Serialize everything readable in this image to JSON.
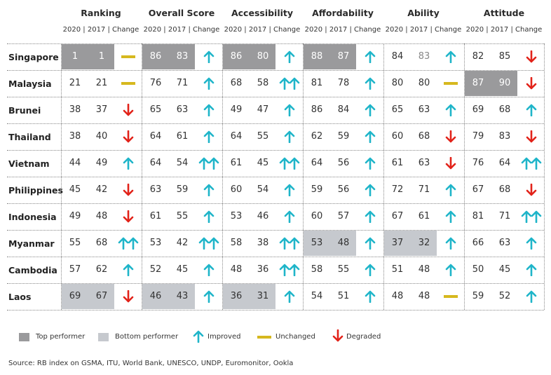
{
  "chart_data": {
    "type": "table",
    "categories": [
      "Ranking",
      "Overall Score",
      "Accessibility",
      "Affordability",
      "Ability",
      "Attitude"
    ],
    "subheader": "2020 | 2017 | Change",
    "countries": [
      "Singapore",
      "Malaysia",
      "Brunei",
      "Thailand",
      "Vietnam",
      "Philippines",
      "Indonesia",
      "Myanmar",
      "Cambodia",
      "Laos"
    ],
    "rows": [
      [
        [
          1,
          1,
          "unchanged"
        ],
        [
          86,
          83,
          "up"
        ],
        [
          86,
          80,
          "up"
        ],
        [
          88,
          87,
          "up"
        ],
        [
          84,
          83,
          "up"
        ],
        [
          82,
          85,
          "down"
        ]
      ],
      [
        [
          21,
          21,
          "unchanged"
        ],
        [
          76,
          71,
          "up"
        ],
        [
          68,
          58,
          "up2"
        ],
        [
          81,
          78,
          "up"
        ],
        [
          80,
          80,
          "unchanged"
        ],
        [
          87,
          90,
          "down"
        ]
      ],
      [
        [
          38,
          37,
          "down"
        ],
        [
          65,
          63,
          "up"
        ],
        [
          49,
          47,
          "up"
        ],
        [
          86,
          84,
          "up"
        ],
        [
          65,
          63,
          "up"
        ],
        [
          69,
          68,
          "up"
        ]
      ],
      [
        [
          38,
          40,
          "down"
        ],
        [
          64,
          61,
          "up"
        ],
        [
          64,
          55,
          "up"
        ],
        [
          62,
          59,
          "up"
        ],
        [
          60,
          68,
          "down"
        ],
        [
          79,
          83,
          "down"
        ]
      ],
      [
        [
          44,
          49,
          "up"
        ],
        [
          64,
          54,
          "up2"
        ],
        [
          61,
          45,
          "up2"
        ],
        [
          64,
          56,
          "up"
        ],
        [
          61,
          63,
          "down"
        ],
        [
          76,
          64,
          "up2"
        ]
      ],
      [
        [
          45,
          42,
          "down"
        ],
        [
          63,
          59,
          "up"
        ],
        [
          60,
          54,
          "up"
        ],
        [
          59,
          56,
          "up"
        ],
        [
          72,
          71,
          "up"
        ],
        [
          67,
          68,
          "down"
        ]
      ],
      [
        [
          49,
          48,
          "down"
        ],
        [
          61,
          55,
          "up"
        ],
        [
          53,
          46,
          "up"
        ],
        [
          60,
          57,
          "up"
        ],
        [
          67,
          61,
          "up"
        ],
        [
          81,
          71,
          "up2"
        ]
      ],
      [
        [
          55,
          68,
          "up2"
        ],
        [
          53,
          42,
          "up2"
        ],
        [
          58,
          38,
          "up2"
        ],
        [
          53,
          48,
          "up"
        ],
        [
          37,
          32,
          "up"
        ],
        [
          66,
          63,
          "up"
        ]
      ],
      [
        [
          57,
          62,
          "up"
        ],
        [
          52,
          45,
          "up"
        ],
        [
          48,
          36,
          "up2"
        ],
        [
          58,
          55,
          "up"
        ],
        [
          51,
          48,
          "up"
        ],
        [
          50,
          45,
          "up"
        ]
      ],
      [
        [
          69,
          67,
          "down"
        ],
        [
          46,
          43,
          "up"
        ],
        [
          36,
          31,
          "up"
        ],
        [
          54,
          51,
          "up"
        ],
        [
          48,
          48,
          "unchanged"
        ],
        [
          59,
          52,
          "up"
        ]
      ]
    ],
    "top_performer": [
      [
        0,
        0
      ],
      [
        0,
        1
      ],
      [
        0,
        2
      ],
      [
        0,
        3
      ],
      [
        1,
        5
      ]
    ],
    "bottom_performer": [
      [
        9,
        0
      ],
      [
        9,
        1
      ],
      [
        9,
        2
      ],
      [
        7,
        3
      ],
      [
        7,
        4
      ]
    ],
    "colors": {
      "top": "#9a9a9c",
      "bottom": "#c6c9ce",
      "improved": "#1fb5c9",
      "unchanged": "#d6b81e",
      "degraded": "#e2231a"
    },
    "legend_position": "bottom-left"
  },
  "legend": {
    "top_performer": "Top performer",
    "bottom_performer": "Bottom performer",
    "improved": "Improved",
    "unchanged": "Unchanged",
    "degraded": "Degraded"
  },
  "source": "Source: RB index on GSMA, ITU, World Bank, UNESCO, UNDP, Euromonitor, Ookla"
}
